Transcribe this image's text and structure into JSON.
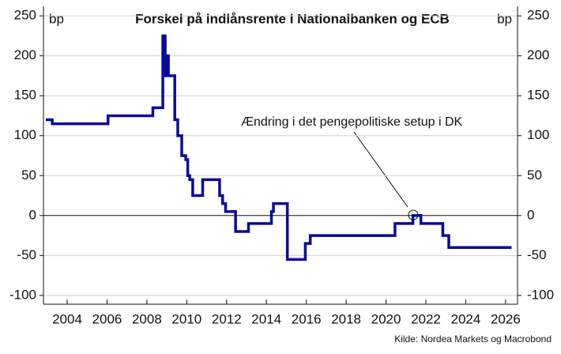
{
  "chart_data": {
    "type": "line",
    "title": "Forskel på indlånsrente i Nationalbanken og ECB",
    "y_unit": "bp",
    "y2_unit": "bp",
    "annotation": "Ændring i det pengepolitiske setup i DK",
    "source": "Kilde: Nordea Markets og Macrobond",
    "xlim": [
      2002.81,
      2026.6
    ],
    "xticks": [
      2004,
      2006,
      2008,
      2010,
      2012,
      2014,
      2016,
      2018,
      2020,
      2022,
      2024,
      2026
    ],
    "ylim": [
      -111,
      262
    ],
    "yticks": [
      -100,
      -50,
      0,
      50,
      100,
      150,
      200,
      250
    ],
    "y2lim": [
      -111,
      262
    ],
    "y2ticks": [
      -100,
      -50,
      0,
      50,
      100,
      150,
      200,
      250
    ],
    "grid": true,
    "series": [
      {
        "name": "Forskel",
        "color": "#0a0a9e",
        "x": [
          2002.93,
          2003.25,
          2003.25,
          2006.05,
          2006.05,
          2008.3,
          2008.3,
          2008.8,
          2008.8,
          2008.92,
          2008.92,
          2009.0,
          2009.0,
          2009.08,
          2009.08,
          2009.4,
          2009.4,
          2009.55,
          2009.55,
          2009.75,
          2009.75,
          2009.95,
          2009.95,
          2010.05,
          2010.05,
          2010.15,
          2010.15,
          2010.3,
          2010.3,
          2010.8,
          2010.8,
          2011.65,
          2011.65,
          2011.8,
          2011.8,
          2011.95,
          2011.95,
          2012.45,
          2012.45,
          2013.1,
          2013.1,
          2014.25,
          2014.25,
          2014.35,
          2014.35,
          2015.05,
          2015.05,
          2015.95,
          2015.95,
          2016.2,
          2016.2,
          2020.45,
          2020.45,
          2021.35,
          2021.35,
          2021.75,
          2021.75,
          2022.85,
          2022.85,
          2023.15,
          2023.15,
          2026.3
        ],
        "values": [
          120,
          120,
          115,
          115,
          125,
          125,
          135,
          135,
          225,
          225,
          175,
          175,
          200,
          200,
          175,
          175,
          120,
          120,
          100,
          100,
          75,
          75,
          70,
          70,
          50,
          50,
          45,
          45,
          25,
          25,
          45,
          45,
          25,
          25,
          15,
          15,
          5,
          5,
          -20,
          -20,
          -10,
          -10,
          5,
          5,
          15,
          15,
          -55,
          -55,
          -35,
          -35,
          -25,
          -25,
          -10,
          -10,
          0,
          0,
          -10,
          -10,
          -25,
          -25,
          -40,
          -40
        ]
      }
    ]
  }
}
